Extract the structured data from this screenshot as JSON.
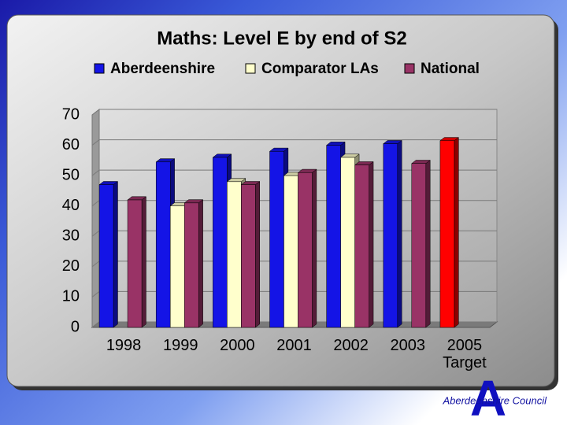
{
  "chart_data": {
    "type": "bar3d",
    "title": "Maths: Level E by end of S2",
    "categories": [
      "1998",
      "1999",
      "2000",
      "2001",
      "2002",
      "2003",
      "2005\nTarget"
    ],
    "series": [
      {
        "name": "Aberdeenshire",
        "color": "#1414e6",
        "colors": [
          "#1414e6",
          "#1414e6",
          "#1414e6",
          "#1414e6",
          "#1414e6",
          "#1414e6",
          "#ff0000"
        ],
        "values": [
          47,
          54.5,
          56,
          58,
          60,
          60.5,
          61.5
        ]
      },
      {
        "name": "Comparator LAs",
        "color": "#ffffcc",
        "values": [
          null,
          40,
          48,
          50,
          56,
          null,
          null
        ]
      },
      {
        "name": "National",
        "color": "#993366",
        "values": [
          42,
          41,
          47,
          51,
          53.5,
          54,
          null
        ]
      }
    ],
    "ylim": [
      0,
      70
    ],
    "yticks": [
      0,
      10,
      20,
      30,
      40,
      50,
      60,
      70
    ],
    "grid": true,
    "legend": "top"
  },
  "footer": "Aberdeenshire Council"
}
